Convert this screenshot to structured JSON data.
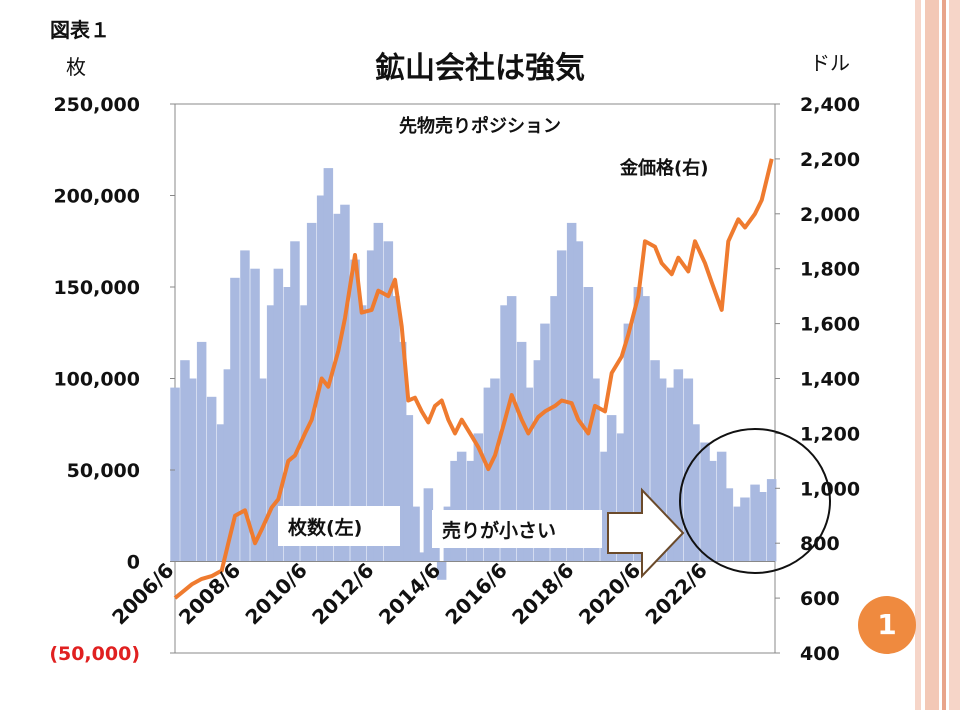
{
  "slide": {
    "figure_label": "図表１",
    "title": "鉱山会社は強気",
    "left_unit": "枚",
    "right_unit": "ドル",
    "page_number": "1"
  },
  "colors": {
    "bars": "#a9b9e0",
    "gold_line": "#ef7b2f",
    "negative_label": "#e02020",
    "badge": "#ef8a3f",
    "deco_dark": "#e8a48a",
    "deco_light": "#f6d5c8"
  },
  "annotations": {
    "short_position": "先物売りポジション",
    "gold_price": "金価格(右)",
    "contracts": "枚数(左)",
    "small_selling": "売りが小さい"
  },
  "chart_data": {
    "type": "bar+line",
    "title": "鉱山会社は強気",
    "left_axis": {
      "label": "枚",
      "ylim": [
        -50000,
        250000
      ],
      "ticks": [
        250000,
        200000,
        150000,
        100000,
        50000,
        0,
        -50000
      ],
      "tick_labels": [
        "250,000",
        "200,000",
        "150,000",
        "100,000",
        "50,000",
        "0",
        "(50,000)"
      ]
    },
    "right_axis": {
      "label": "ドル",
      "ylim": [
        400,
        2400
      ],
      "ticks": [
        2400,
        2200,
        2000,
        1800,
        1600,
        1400,
        1200,
        1000,
        800,
        600,
        400
      ],
      "tick_labels": [
        "2,400",
        "2,200",
        "2,000",
        "1,800",
        "1,600",
        "1,400",
        "1,200",
        "1,000",
        "800",
        "600",
        "400"
      ]
    },
    "x_axis": {
      "range": [
        2006.5,
        2024.5
      ],
      "ticks": [
        2006.5,
        2008.5,
        2010.5,
        2012.5,
        2014.5,
        2016.5,
        2018.5,
        2020.5,
        2022.5
      ],
      "tick_labels": [
        "2006/6",
        "2008/6",
        "2010/6",
        "2012/6",
        "2014/6",
        "2016/6",
        "2018/6",
        "2020/6",
        "2022/6"
      ]
    },
    "grid": false,
    "series": [
      {
        "name": "先物売りポジション",
        "axis": "left",
        "kind": "bar",
        "x": [
          2006.5,
          2006.8,
          2007.0,
          2007.3,
          2007.6,
          2007.9,
          2008.1,
          2008.3,
          2008.6,
          2008.9,
          2009.1,
          2009.4,
          2009.6,
          2009.9,
          2010.1,
          2010.4,
          2010.6,
          2010.9,
          2011.1,
          2011.4,
          2011.6,
          2011.9,
          2012.1,
          2012.4,
          2012.6,
          2012.9,
          2013.1,
          2013.3,
          2013.5,
          2013.7,
          2013.9,
          2014.1,
          2014.3,
          2014.5,
          2014.7,
          2014.9,
          2015.1,
          2015.4,
          2015.6,
          2015.9,
          2016.1,
          2016.4,
          2016.6,
          2016.9,
          2017.1,
          2017.4,
          2017.6,
          2017.9,
          2018.1,
          2018.4,
          2018.6,
          2018.9,
          2019.1,
          2019.4,
          2019.6,
          2019.9,
          2020.1,
          2020.4,
          2020.6,
          2020.9,
          2021.1,
          2021.4,
          2021.6,
          2021.9,
          2022.1,
          2022.4,
          2022.6,
          2022.9,
          2023.1,
          2023.4,
          2023.6,
          2023.9,
          2024.1,
          2024.4
        ],
        "values": [
          95000,
          110000,
          100000,
          120000,
          90000,
          75000,
          105000,
          155000,
          170000,
          160000,
          100000,
          140000,
          160000,
          150000,
          175000,
          140000,
          185000,
          200000,
          215000,
          190000,
          195000,
          165000,
          140000,
          170000,
          185000,
          175000,
          145000,
          120000,
          80000,
          30000,
          5000,
          40000,
          20000,
          -10000,
          30000,
          55000,
          60000,
          55000,
          70000,
          95000,
          100000,
          140000,
          145000,
          120000,
          95000,
          110000,
          130000,
          145000,
          170000,
          185000,
          175000,
          150000,
          100000,
          60000,
          80000,
          70000,
          130000,
          150000,
          145000,
          110000,
          100000,
          95000,
          105000,
          100000,
          75000,
          65000,
          55000,
          60000,
          40000,
          30000,
          35000,
          42000,
          38000,
          45000
        ]
      },
      {
        "name": "金価格(右)",
        "axis": "right",
        "kind": "line",
        "x": [
          2006.5,
          2006.8,
          2007.0,
          2007.3,
          2007.6,
          2007.9,
          2008.1,
          2008.3,
          2008.6,
          2008.9,
          2009.1,
          2009.4,
          2009.6,
          2009.9,
          2010.1,
          2010.4,
          2010.6,
          2010.9,
          2011.1,
          2011.4,
          2011.6,
          2011.9,
          2012.1,
          2012.4,
          2012.6,
          2012.9,
          2013.1,
          2013.3,
          2013.5,
          2013.7,
          2013.9,
          2014.1,
          2014.3,
          2014.5,
          2014.7,
          2014.9,
          2015.1,
          2015.4,
          2015.6,
          2015.9,
          2016.1,
          2016.4,
          2016.6,
          2016.9,
          2017.1,
          2017.4,
          2017.6,
          2017.9,
          2018.1,
          2018.4,
          2018.6,
          2018.9,
          2019.1,
          2019.4,
          2019.6,
          2019.9,
          2020.1,
          2020.4,
          2020.6,
          2020.9,
          2021.1,
          2021.4,
          2021.6,
          2021.9,
          2022.1,
          2022.4,
          2022.6,
          2022.9,
          2023.1,
          2023.4,
          2023.6,
          2023.9,
          2024.1,
          2024.4
        ],
        "values": [
          600,
          630,
          650,
          670,
          680,
          700,
          800,
          900,
          920,
          800,
          850,
          930,
          960,
          1100,
          1120,
          1200,
          1250,
          1400,
          1370,
          1500,
          1620,
          1850,
          1640,
          1650,
          1720,
          1700,
          1760,
          1590,
          1320,
          1330,
          1280,
          1240,
          1300,
          1320,
          1250,
          1200,
          1250,
          1190,
          1150,
          1070,
          1120,
          1250,
          1340,
          1250,
          1200,
          1260,
          1280,
          1300,
          1320,
          1310,
          1250,
          1200,
          1300,
          1280,
          1420,
          1480,
          1560,
          1700,
          1900,
          1880,
          1820,
          1780,
          1840,
          1790,
          1900,
          1820,
          1750,
          1650,
          1900,
          1980,
          1950,
          2000,
          2050,
          2200
        ]
      }
    ]
  }
}
